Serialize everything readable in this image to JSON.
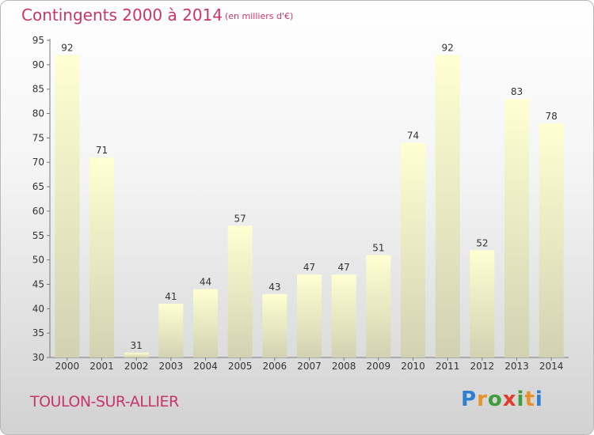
{
  "header": {
    "title": "Contingents 2000 à 2014",
    "subtitle": "(en milliers d'€)"
  },
  "footer": {
    "commune": "TOULON-SUR-ALLIER",
    "logo_text": "Proxiti"
  },
  "chart_data": {
    "type": "bar",
    "title": "Contingents 2000 à 2014",
    "subtitle": "(en milliers d'€)",
    "xlabel": "",
    "ylabel": "",
    "categories": [
      "2000",
      "2001",
      "2002",
      "2003",
      "2004",
      "2005",
      "2006",
      "2007",
      "2008",
      "2009",
      "2010",
      "2011",
      "2012",
      "2013",
      "2014"
    ],
    "values": [
      92,
      71,
      31,
      41,
      44,
      57,
      43,
      47,
      47,
      51,
      74,
      92,
      52,
      83,
      78
    ],
    "ylim": [
      30,
      95
    ],
    "yticks": [
      30,
      35,
      40,
      45,
      50,
      55,
      60,
      65,
      70,
      75,
      80,
      85,
      90,
      95
    ],
    "grid": false,
    "legend": "none",
    "colors": {
      "bar_top": "#ffffd2",
      "bar_bottom": "#d2d2b2",
      "accent": "#c8356d"
    }
  }
}
